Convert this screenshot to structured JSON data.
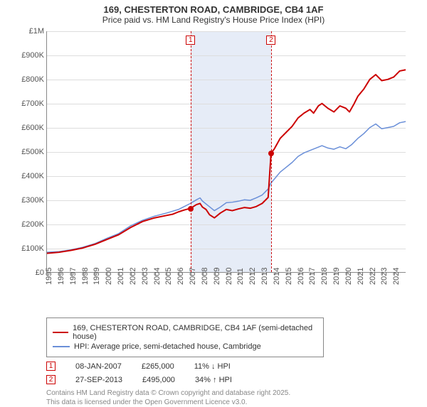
{
  "title": {
    "line1": "169, CHESTERTON ROAD, CAMBRIDGE, CB4 1AF",
    "line2": "Price paid vs. HM Land Registry's House Price Index (HPI)"
  },
  "chart": {
    "type": "line",
    "background_color": "#ffffff",
    "grid_color": "#dddddd",
    "axis_color": "#888888",
    "ylabel_prefix": "£",
    "ylim": [
      0,
      1000000
    ],
    "ytick_step": 100000,
    "ytick_labels": [
      "£0",
      "£100K",
      "£200K",
      "£300K",
      "£400K",
      "£500K",
      "£600K",
      "£700K",
      "£800K",
      "£900K",
      "£1M"
    ],
    "xlim": [
      1995,
      2025
    ],
    "xtick_step": 1,
    "xtick_labels": [
      "1995",
      "1996",
      "1997",
      "1998",
      "1999",
      "2000",
      "2001",
      "2002",
      "2003",
      "2004",
      "2005",
      "2006",
      "2007",
      "2008",
      "2009",
      "2010",
      "2011",
      "2012",
      "2013",
      "2014",
      "2015",
      "2016",
      "2017",
      "2018",
      "2019",
      "2020",
      "2021",
      "2022",
      "2023",
      "2024"
    ],
    "shaded_region": {
      "from": 2007.02,
      "to": 2013.74,
      "color": "#e6ecf7"
    },
    "series": [
      {
        "name": "price_paid",
        "legend": "169, CHESTERTON ROAD, CAMBRIDGE, CB4 1AF (semi-detached house)",
        "color": "#cc0000",
        "line_width": 2,
        "points": [
          [
            1995,
            78000
          ],
          [
            1996,
            82000
          ],
          [
            1997,
            90000
          ],
          [
            1998,
            100000
          ],
          [
            1999,
            115000
          ],
          [
            2000,
            135000
          ],
          [
            2001,
            155000
          ],
          [
            2002,
            185000
          ],
          [
            2003,
            210000
          ],
          [
            2004,
            225000
          ],
          [
            2005,
            235000
          ],
          [
            2005.5,
            240000
          ],
          [
            2006,
            250000
          ],
          [
            2006.5,
            258000
          ],
          [
            2007.02,
            265000
          ],
          [
            2007.5,
            280000
          ],
          [
            2007.8,
            285000
          ],
          [
            2008,
            270000
          ],
          [
            2008.3,
            260000
          ],
          [
            2008.6,
            238000
          ],
          [
            2009,
            225000
          ],
          [
            2009.5,
            245000
          ],
          [
            2010,
            260000
          ],
          [
            2010.5,
            255000
          ],
          [
            2011,
            262000
          ],
          [
            2011.5,
            268000
          ],
          [
            2012,
            265000
          ],
          [
            2012.5,
            272000
          ],
          [
            2013,
            285000
          ],
          [
            2013.5,
            310000
          ],
          [
            2013.74,
            495000
          ],
          [
            2014,
            510000
          ],
          [
            2014.5,
            555000
          ],
          [
            2015,
            580000
          ],
          [
            2015.5,
            605000
          ],
          [
            2016,
            640000
          ],
          [
            2016.5,
            660000
          ],
          [
            2017,
            675000
          ],
          [
            2017.3,
            660000
          ],
          [
            2017.7,
            690000
          ],
          [
            2018,
            700000
          ],
          [
            2018.5,
            680000
          ],
          [
            2019,
            665000
          ],
          [
            2019.5,
            690000
          ],
          [
            2020,
            680000
          ],
          [
            2020.3,
            665000
          ],
          [
            2020.7,
            700000
          ],
          [
            2021,
            730000
          ],
          [
            2021.5,
            760000
          ],
          [
            2022,
            800000
          ],
          [
            2022.5,
            820000
          ],
          [
            2023,
            795000
          ],
          [
            2023.5,
            800000
          ],
          [
            2024,
            810000
          ],
          [
            2024.5,
            835000
          ],
          [
            2025,
            840000
          ]
        ]
      },
      {
        "name": "hpi",
        "legend": "HPI: Average price, semi-detached house, Cambridge",
        "color": "#6a8fd8",
        "line_width": 1.5,
        "points": [
          [
            1995,
            82000
          ],
          [
            1996,
            85000
          ],
          [
            1997,
            92000
          ],
          [
            1998,
            103000
          ],
          [
            1999,
            118000
          ],
          [
            2000,
            140000
          ],
          [
            2001,
            160000
          ],
          [
            2002,
            192000
          ],
          [
            2003,
            215000
          ],
          [
            2004,
            232000
          ],
          [
            2005,
            245000
          ],
          [
            2006,
            260000
          ],
          [
            2007,
            285000
          ],
          [
            2007.5,
            300000
          ],
          [
            2007.8,
            308000
          ],
          [
            2008,
            295000
          ],
          [
            2008.5,
            275000
          ],
          [
            2009,
            255000
          ],
          [
            2009.5,
            270000
          ],
          [
            2010,
            288000
          ],
          [
            2010.5,
            290000
          ],
          [
            2011,
            294000
          ],
          [
            2011.5,
            300000
          ],
          [
            2012,
            298000
          ],
          [
            2012.5,
            308000
          ],
          [
            2013,
            320000
          ],
          [
            2013.5,
            345000
          ],
          [
            2013.74,
            370000
          ],
          [
            2014,
            385000
          ],
          [
            2014.5,
            415000
          ],
          [
            2015,
            435000
          ],
          [
            2015.5,
            455000
          ],
          [
            2016,
            480000
          ],
          [
            2016.5,
            495000
          ],
          [
            2017,
            505000
          ],
          [
            2017.5,
            515000
          ],
          [
            2018,
            525000
          ],
          [
            2018.5,
            515000
          ],
          [
            2019,
            510000
          ],
          [
            2019.5,
            520000
          ],
          [
            2020,
            512000
          ],
          [
            2020.5,
            530000
          ],
          [
            2021,
            555000
          ],
          [
            2021.5,
            575000
          ],
          [
            2022,
            600000
          ],
          [
            2022.5,
            615000
          ],
          [
            2023,
            595000
          ],
          [
            2023.5,
            600000
          ],
          [
            2024,
            605000
          ],
          [
            2024.5,
            620000
          ],
          [
            2025,
            625000
          ]
        ]
      }
    ],
    "event_markers": [
      {
        "id": "1",
        "x": 2007.02,
        "y": 265000,
        "color": "#cc0000"
      },
      {
        "id": "2",
        "x": 2013.74,
        "y": 495000,
        "color": "#cc0000"
      }
    ]
  },
  "markers_table": {
    "rows": [
      {
        "id": "1",
        "date": "08-JAN-2007",
        "price": "£265,000",
        "delta": "11% ↓ HPI"
      },
      {
        "id": "2",
        "date": "27-SEP-2013",
        "price": "£495,000",
        "delta": "34% ↑ HPI"
      }
    ]
  },
  "attribution": {
    "line1": "Contains HM Land Registry data © Crown copyright and database right 2025.",
    "line2": "This data is licensed under the Open Government Licence v3.0."
  },
  "colors": {
    "marker_border": "#cc0000",
    "text_muted": "#888888"
  }
}
